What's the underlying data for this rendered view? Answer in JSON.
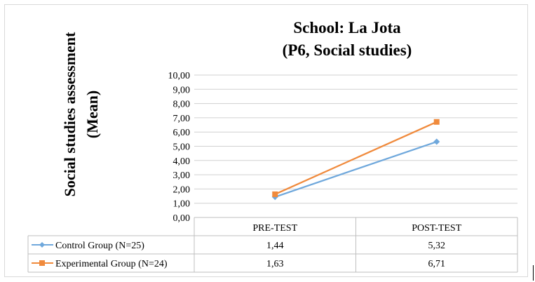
{
  "chart_data": {
    "type": "line",
    "title_lines": [
      "School: La Jota",
      "(P6, Social studies)"
    ],
    "ylabel_lines": [
      "Social studies assessment",
      "(Mean)"
    ],
    "xlabel": "",
    "categories": [
      "PRE-TEST",
      "POST-TEST"
    ],
    "ylim": [
      0,
      10
    ],
    "ytick_step": 1,
    "ytick_labels": [
      "0,00",
      "1,00",
      "2,00",
      "3,00",
      "4,00",
      "5,00",
      "6,00",
      "7,00",
      "8,00",
      "9,00",
      "10,00"
    ],
    "grid": true,
    "legend": "data-table",
    "series": [
      {
        "name": "Control Group (N=25)",
        "values": [
          1.44,
          5.32
        ],
        "labels": [
          "1,44",
          "5,32"
        ],
        "color": "#6fa8dc",
        "marker": "diamond"
      },
      {
        "name": "Experimental Group (N=24)",
        "values": [
          1.63,
          6.71
        ],
        "labels": [
          "1,63",
          "6,71"
        ],
        "color": "#f08a3c",
        "marker": "square"
      }
    ]
  }
}
